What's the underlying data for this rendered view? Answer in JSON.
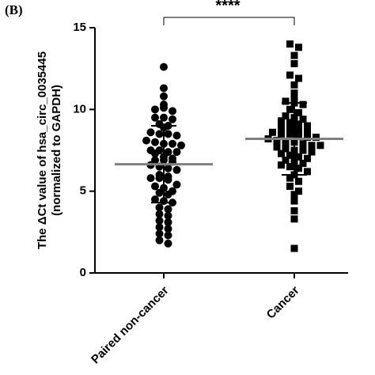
{
  "chart_data": {
    "type": "dotplot",
    "panel_label": "(B)",
    "y_label": [
      "The ΔCt value of hsa_circ_0035445",
      "(normalized to GAPDH)"
    ],
    "categories": [
      "Paired non-cancer",
      "Cancer"
    ],
    "markers": [
      "circle",
      "square"
    ],
    "color": "#000000",
    "mean_color": "#808080",
    "groups": [
      {
        "values": [
          12.6,
          11.3,
          10.8,
          10.3,
          10.0,
          10.1,
          9.9,
          9.5,
          9.5,
          9.4,
          9.1,
          9.0,
          8.9,
          8.6,
          8.5,
          8.5,
          8.4,
          8.1,
          8.0,
          7.9,
          7.9,
          7.8,
          7.5,
          7.5,
          7.4,
          7.4,
          7.3,
          7.1,
          7.0,
          6.9,
          6.9,
          6.8,
          6.6,
          6.5,
          6.4,
          6.3,
          6.0,
          5.9,
          5.8,
          5.8,
          5.7,
          5.4,
          5.3,
          5.2,
          5.0,
          4.9,
          4.8,
          4.5,
          4.4,
          4.3,
          4.0,
          3.9,
          3.6,
          3.5,
          3.2,
          3.1,
          2.8,
          2.7,
          2.4,
          2.3,
          2.0,
          1.8
        ],
        "mean": 6.65,
        "sd": 2.35
      },
      {
        "values": [
          14.0,
          13.8,
          13.3,
          12.8,
          12.1,
          11.9,
          11.5,
          11.0,
          10.8,
          10.5,
          10.4,
          10.3,
          10.0,
          9.8,
          9.6,
          9.5,
          9.4,
          9.3,
          9.2,
          9.1,
          9.0,
          8.9,
          8.8,
          8.8,
          8.7,
          8.6,
          8.5,
          8.5,
          8.4,
          8.3,
          8.3,
          8.2,
          8.1,
          8.0,
          8.0,
          7.9,
          7.8,
          7.8,
          7.7,
          7.6,
          7.5,
          7.5,
          7.4,
          7.3,
          7.2,
          7.1,
          7.0,
          6.9,
          6.8,
          6.7,
          6.6,
          6.5,
          6.4,
          6.2,
          6.0,
          5.8,
          5.6,
          5.3,
          5.0,
          4.8,
          4.4,
          3.8,
          3.3,
          1.5
        ],
        "mean": 8.2,
        "sd": 2.2
      }
    ],
    "significance": "****",
    "ylim": [
      0,
      15
    ],
    "yticks": [
      0,
      5,
      10,
      15
    ]
  }
}
